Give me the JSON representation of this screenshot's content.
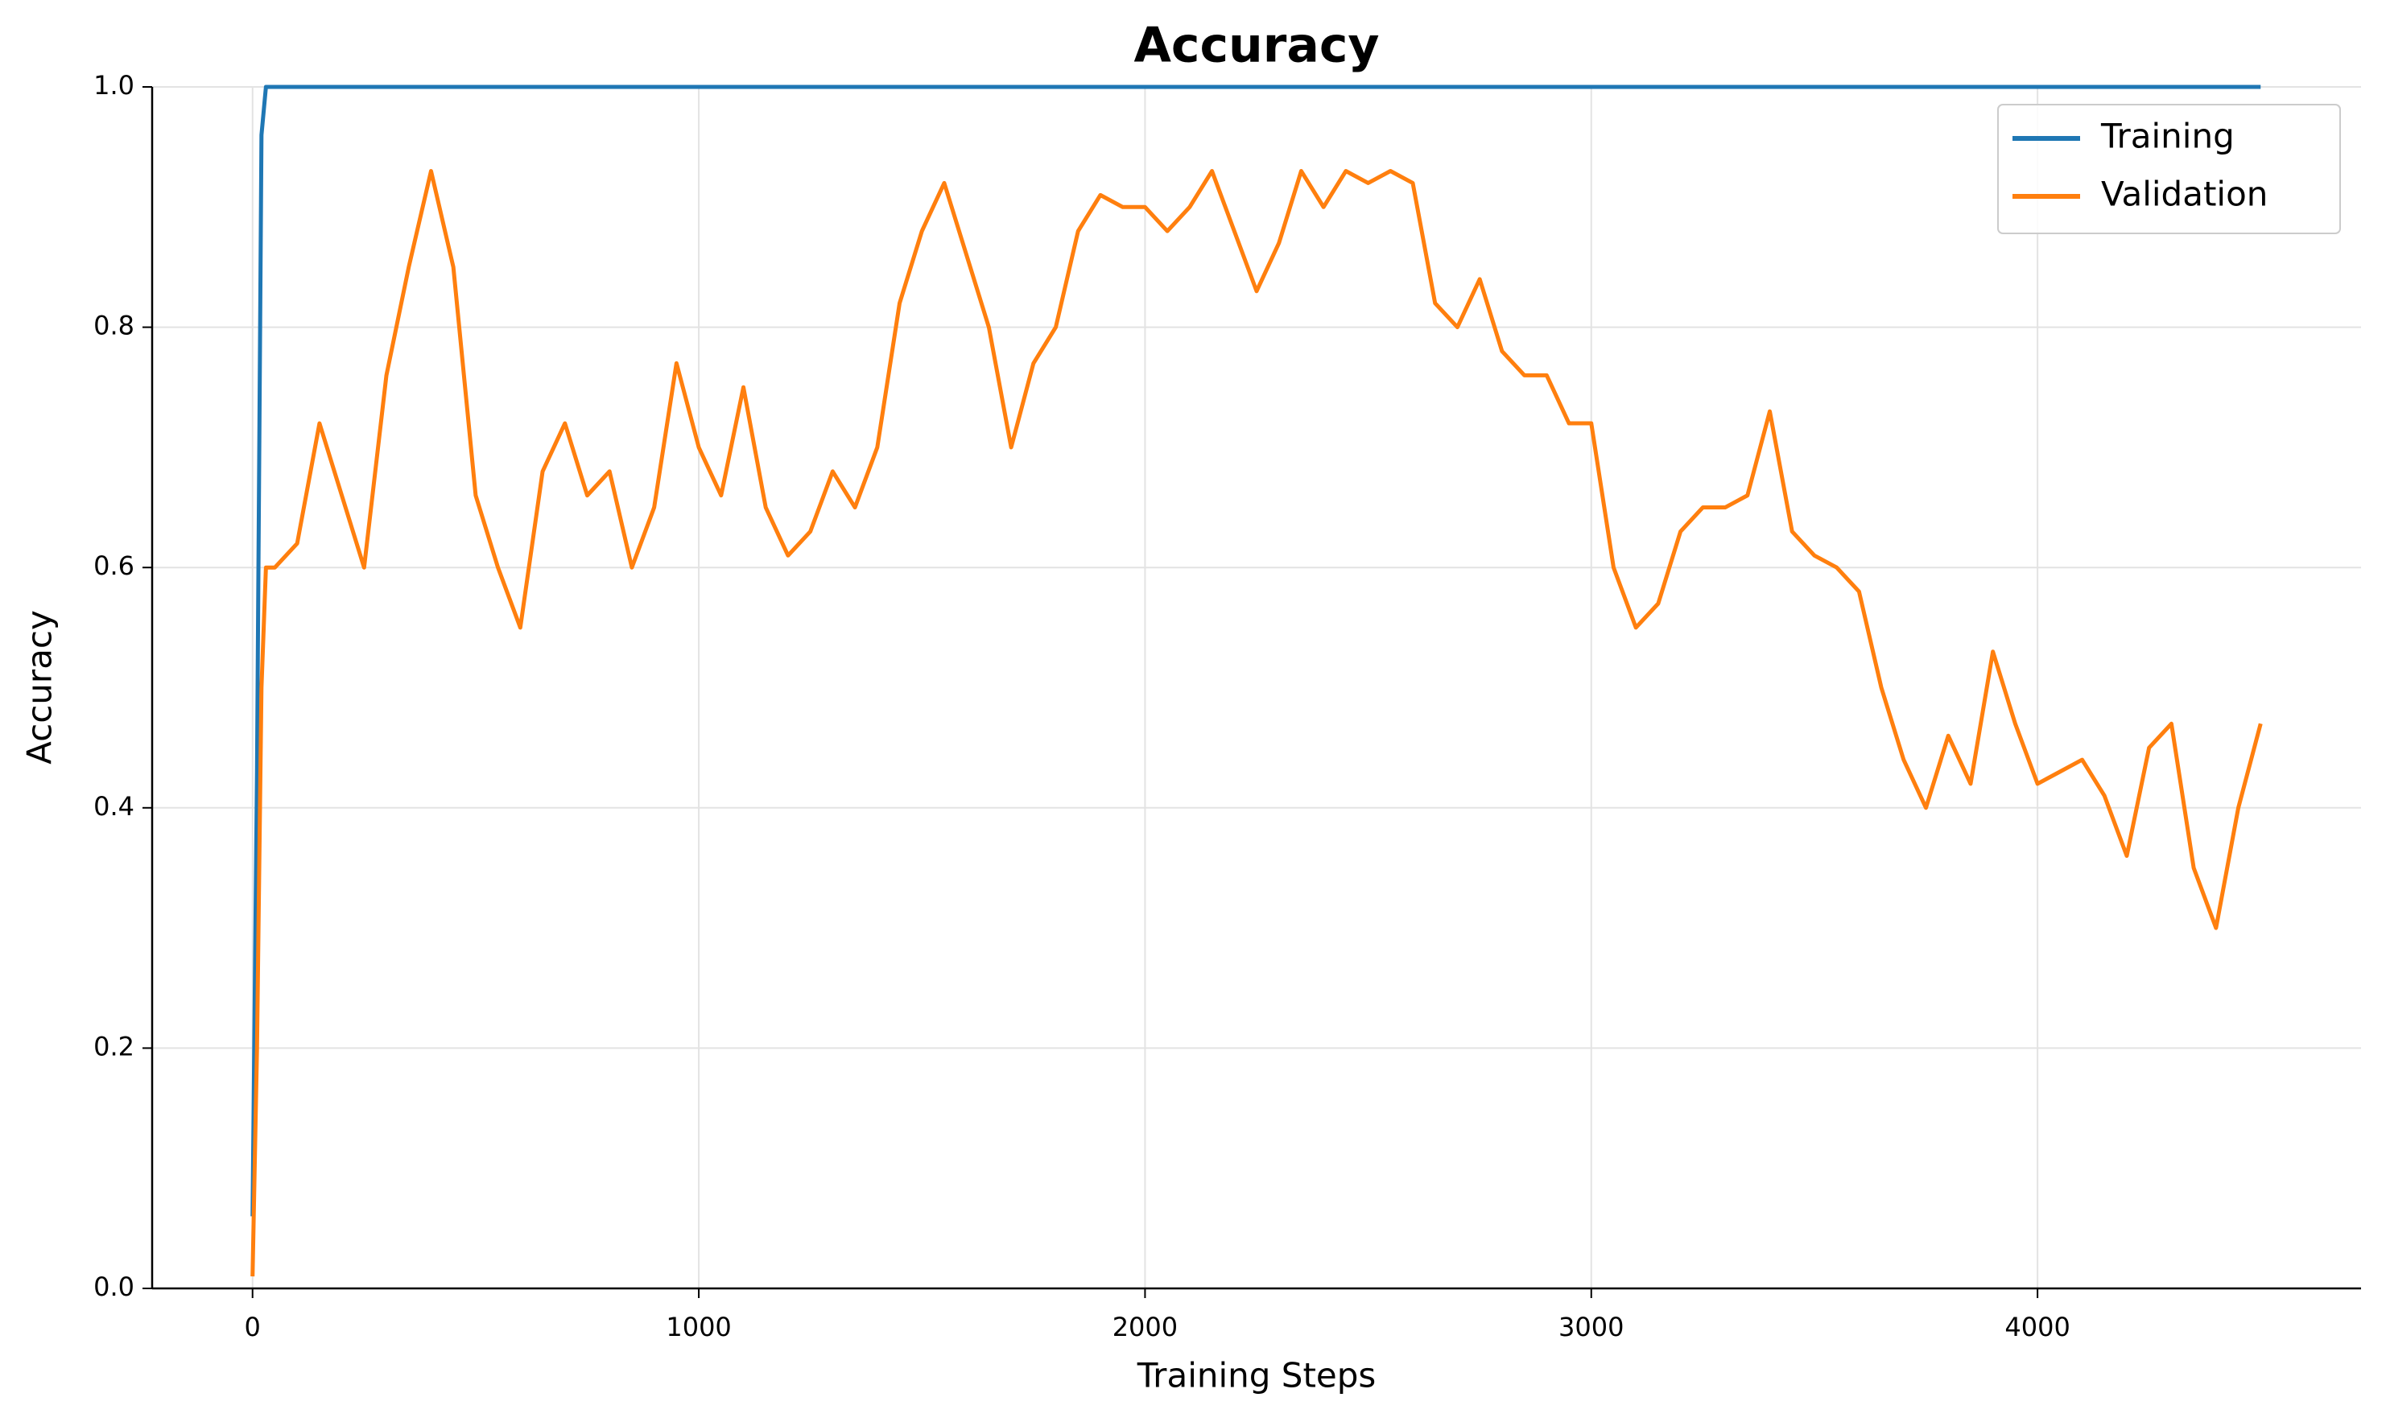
{
  "chart_data": {
    "type": "line",
    "title": "Accuracy",
    "x_label": "Training Steps",
    "y_label": "Accuracy",
    "x": [
      0,
      10,
      20,
      30,
      50,
      100,
      150,
      200,
      250,
      300,
      350,
      400,
      450,
      500,
      550,
      600,
      650,
      700,
      750,
      800,
      850,
      900,
      950,
      1000,
      1050,
      1100,
      1150,
      1200,
      1250,
      1300,
      1350,
      1400,
      1450,
      1500,
      1550,
      1600,
      1650,
      1700,
      1750,
      1800,
      1850,
      1900,
      1950,
      2000,
      2050,
      2100,
      2150,
      2200,
      2250,
      2300,
      2350,
      2400,
      2450,
      2500,
      2550,
      2600,
      2650,
      2700,
      2750,
      2800,
      2850,
      2900,
      2950,
      3000,
      3050,
      3100,
      3150,
      3200,
      3250,
      3300,
      3350,
      3400,
      3450,
      3500,
      3550,
      3600,
      3650,
      3700,
      3750,
      3800,
      3850,
      3900,
      3950,
      4000,
      4050,
      4100,
      4150,
      4200,
      4250,
      4300,
      4350,
      4400,
      4450,
      4500
    ],
    "series": [
      {
        "name": "Training",
        "color": "#1f77b4",
        "values": [
          0.06,
          0.43,
          0.96,
          1.0,
          1.0,
          1.0,
          1.0,
          1.0,
          1.0,
          1.0,
          1.0,
          1.0,
          1.0,
          1.0,
          1.0,
          1.0,
          1.0,
          1.0,
          1.0,
          1.0,
          1.0,
          1.0,
          1.0,
          1.0,
          1.0,
          1.0,
          1.0,
          1.0,
          1.0,
          1.0,
          1.0,
          1.0,
          1.0,
          1.0,
          1.0,
          1.0,
          1.0,
          1.0,
          1.0,
          1.0,
          1.0,
          1.0,
          1.0,
          1.0,
          1.0,
          1.0,
          1.0,
          1.0,
          1.0,
          1.0,
          1.0,
          1.0,
          1.0,
          1.0,
          1.0,
          1.0,
          1.0,
          1.0,
          1.0,
          1.0,
          1.0,
          1.0,
          1.0,
          1.0,
          1.0,
          1.0,
          1.0,
          1.0,
          1.0,
          1.0,
          1.0,
          1.0,
          1.0,
          1.0,
          1.0,
          1.0,
          1.0,
          1.0,
          1.0,
          1.0,
          1.0,
          1.0,
          1.0,
          1.0,
          1.0,
          1.0,
          1.0,
          1.0,
          1.0,
          1.0,
          1.0,
          1.0,
          1.0,
          1.0
        ]
      },
      {
        "name": "Validation",
        "color": "#ff7f0e",
        "values": [
          0.01,
          0.2,
          0.5,
          0.6,
          0.6,
          0.62,
          0.72,
          0.66,
          0.6,
          0.76,
          0.85,
          0.93,
          0.85,
          0.66,
          0.6,
          0.55,
          0.68,
          0.72,
          0.66,
          0.68,
          0.6,
          0.65,
          0.77,
          0.7,
          0.66,
          0.75,
          0.65,
          0.61,
          0.63,
          0.68,
          0.65,
          0.7,
          0.82,
          0.88,
          0.92,
          0.86,
          0.8,
          0.7,
          0.77,
          0.8,
          0.88,
          0.91,
          0.9,
          0.9,
          0.88,
          0.9,
          0.93,
          0.88,
          0.83,
          0.87,
          0.93,
          0.9,
          0.93,
          0.92,
          0.93,
          0.92,
          0.82,
          0.8,
          0.84,
          0.78,
          0.76,
          0.76,
          0.72,
          0.72,
          0.6,
          0.55,
          0.57,
          0.63,
          0.65,
          0.65,
          0.66,
          0.73,
          0.63,
          0.61,
          0.6,
          0.58,
          0.5,
          0.44,
          0.4,
          0.46,
          0.42,
          0.53,
          0.47,
          0.42,
          0.43,
          0.44,
          0.41,
          0.36,
          0.45,
          0.47,
          0.35,
          0.3,
          0.4,
          0.47
        ]
      }
    ],
    "xlim": [
      -225,
      4725
    ],
    "ylim": [
      0,
      1
    ],
    "xticks": [
      0,
      1000,
      2000,
      3000,
      4000
    ],
    "yticks": [
      {
        "value": 0,
        "label": "0.0"
      },
      {
        "value": 0.2,
        "label": "0.2"
      },
      {
        "value": 0.4,
        "label": "0.4"
      },
      {
        "value": 0.6,
        "label": "0.6"
      },
      {
        "value": 0.8,
        "label": "0.8"
      },
      {
        "value": 1,
        "label": "1.0"
      }
    ],
    "grid": true,
    "legend": "upper right"
  }
}
